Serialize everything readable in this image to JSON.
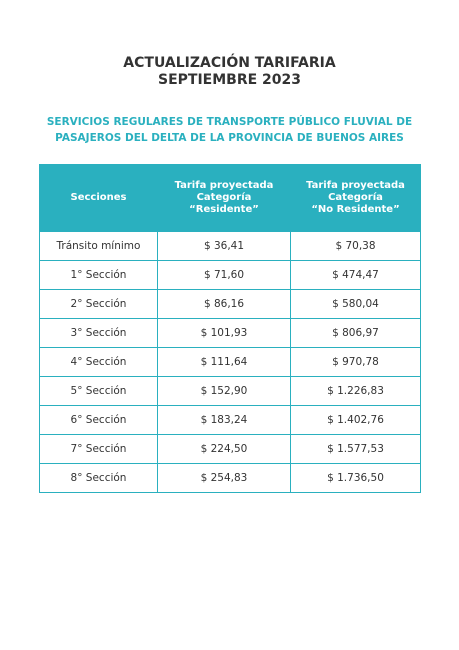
{
  "header": {
    "title": [
      "ACTUALIZACIÓN TARIFARIA",
      "SEPTIEMBRE 2023"
    ],
    "subtitle": [
      "SERVICIOS REGULARES DE TRANSPORTE PÚBLICO FLUVIAL DE",
      "PASAJEROS DEL DELTA DE LA PROVINCIA DE BUENOS AIRES"
    ]
  },
  "table": {
    "columns": [
      [
        "Secciones"
      ],
      [
        "Tarifa proyectada",
        "Categoría",
        "“Residente”"
      ],
      [
        "Tarifa proyectada",
        "Categoría",
        "“No Residente”"
      ]
    ],
    "rows": [
      [
        "Tránsito mínimo",
        "$ 36,41",
        "$ 70,38"
      ],
      [
        "1° Sección",
        "$ 71,60",
        "$ 474,47"
      ],
      [
        "2° Sección",
        "$ 86,16",
        "$ 580,04"
      ],
      [
        "3° Sección",
        "$ 101,93",
        "$ 806,97"
      ],
      [
        "4° Sección",
        "$ 111,64",
        "$ 970,78"
      ],
      [
        "5° Sección",
        "$ 152,90",
        "$ 1.226,83"
      ],
      [
        "6° Sección",
        "$ 183,24",
        "$ 1.402,76"
      ],
      [
        "7° Sección",
        "$ 224,50",
        "$ 1.577,53"
      ],
      [
        "8° Sección",
        "$ 254,83",
        "$ 1.736,50"
      ]
    ]
  }
}
